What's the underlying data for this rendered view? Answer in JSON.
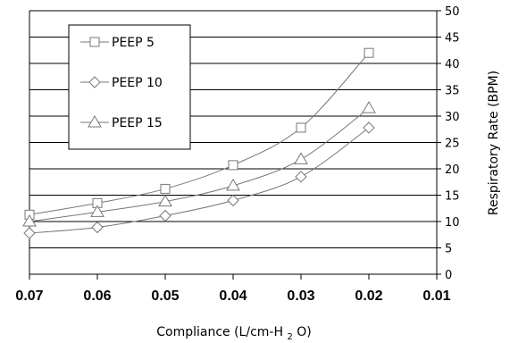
{
  "chart_data": {
    "type": "line",
    "title": "",
    "xlabel": "Compliance (L/cm-H",
    "xlabel_subscript": "2",
    "xlabel_suffix": "O)",
    "ylabel": "Respiratory Rate  (BPM)",
    "x_reversed": true,
    "xlim": [
      0.01,
      0.07
    ],
    "ylim": [
      0,
      50
    ],
    "x_ticks": [
      "0.07",
      "0.06",
      "0.05",
      "0.04",
      "0.03",
      "0.02",
      "0.01"
    ],
    "x_tick_values": [
      0.07,
      0.06,
      0.05,
      0.04,
      0.03,
      0.02,
      0.01
    ],
    "y_ticks": [
      0,
      5,
      10,
      15,
      20,
      25,
      30,
      35,
      40,
      45,
      50
    ],
    "grid": "horizontal",
    "legend_position": "top-left",
    "x": [
      0.07,
      0.06,
      0.05,
      0.04,
      0.03,
      0.02
    ],
    "series": [
      {
        "name": "PEEP 5",
        "marker": "square",
        "values": [
          11.3,
          13.5,
          16.2,
          20.7,
          27.8,
          42.0
        ]
      },
      {
        "name": "PEEP 10",
        "marker": "diamond",
        "values": [
          7.8,
          8.9,
          11.1,
          14.0,
          18.5,
          27.8
        ]
      },
      {
        "name": "PEEP 15",
        "marker": "triangle",
        "values": [
          10.0,
          11.8,
          13.8,
          16.8,
          21.8,
          31.5
        ]
      }
    ]
  }
}
